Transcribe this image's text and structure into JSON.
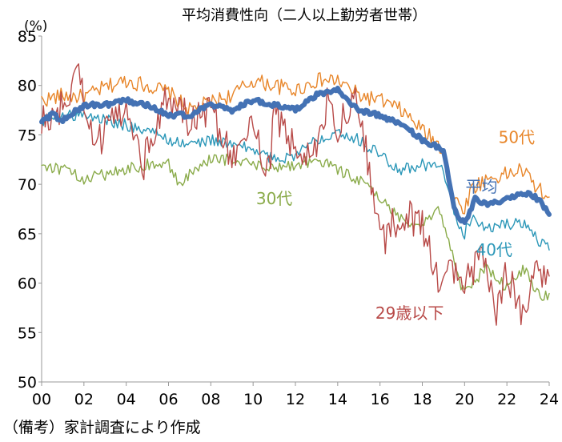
{
  "chart_data": {
    "type": "line",
    "title": "平均消費性向（二人以上勤労者世帯）",
    "ylabel": "(%)",
    "xlabel": "",
    "note": "（備考）家計調査により作成",
    "ylim": [
      50,
      85
    ],
    "xlim": [
      2000,
      2024
    ],
    "yticks": [
      "50",
      "55",
      "60",
      "65",
      "70",
      "75",
      "80",
      "85"
    ],
    "xticks": [
      "00",
      "02",
      "04",
      "06",
      "08",
      "10",
      "12",
      "14",
      "16",
      "18",
      "20",
      "22",
      "24"
    ],
    "series": [
      {
        "name": "50代",
        "color": "#e8862a",
        "x": [
          2000,
          2001,
          2002,
          2003,
          2004,
          2005,
          2006,
          2007,
          2008,
          2009,
          2010,
          2011,
          2012,
          2013,
          2014,
          2015,
          2016,
          2017,
          2018,
          2019,
          2019.5,
          2020,
          2020.3,
          2021,
          2022,
          2022.7,
          2023.5,
          2024
        ],
        "y": [
          78.5,
          79,
          78.8,
          79.8,
          80.5,
          80,
          79.3,
          77.5,
          78.3,
          79,
          80.5,
          80,
          79.5,
          80.5,
          80.5,
          79,
          78.5,
          77.5,
          75.5,
          73.5,
          68.5,
          67.5,
          69.5,
          70.5,
          71,
          71.5,
          69.5,
          68.5
        ]
      },
      {
        "name": "40代",
        "color": "#2b97b8",
        "x": [
          2000,
          2001,
          2002,
          2003,
          2004,
          2005,
          2006,
          2007,
          2008,
          2009,
          2010,
          2011,
          2012,
          2013,
          2014,
          2015,
          2016,
          2017,
          2018,
          2019,
          2019.5,
          2020,
          2020.3,
          2021,
          2022,
          2023,
          2023.6,
          2024
        ],
        "y": [
          76.5,
          77,
          77,
          76.5,
          76,
          75.5,
          74.5,
          74,
          74.5,
          74,
          73.5,
          72.5,
          73,
          74.5,
          75.5,
          74.5,
          73,
          71.5,
          72,
          71.5,
          67,
          65,
          66.5,
          65.5,
          66,
          66,
          64,
          63.5
        ]
      },
      {
        "name": "30代",
        "color": "#8aab4a",
        "x": [
          2000,
          2001,
          2002,
          2003,
          2004,
          2005,
          2006,
          2006.5,
          2007,
          2008,
          2009,
          2010,
          2011,
          2012,
          2013,
          2014,
          2015,
          2016,
          2017,
          2018,
          2018.8,
          2019.3,
          2019.8,
          2020,
          2021,
          2022,
          2022.8,
          2023.5,
          2024
        ],
        "y": [
          72,
          71.5,
          70.5,
          71,
          71.5,
          72,
          72,
          70,
          71,
          72.5,
          72.5,
          72,
          71.5,
          72,
          72.5,
          71.5,
          70.5,
          68.5,
          66.5,
          66,
          67.5,
          64,
          60,
          59,
          61.5,
          59.5,
          61.5,
          59,
          58.5
        ]
      },
      {
        "name": "29歳以下",
        "color": "#b84a48",
        "x": [
          2000,
          2001,
          2001.8,
          2002.5,
          2003,
          2004,
          2004.8,
          2005.5,
          2006,
          2007,
          2008,
          2009,
          2010,
          2010.7,
          2011,
          2012,
          2013,
          2013.6,
          2014,
          2015,
          2015.5,
          2016,
          2017,
          2018,
          2018.8,
          2019.3,
          2020,
          2020.8,
          2021.5,
          2022,
          2022.8,
          2023.3,
          2024
        ],
        "y": [
          76,
          78,
          81,
          74,
          75,
          78.5,
          72,
          77,
          79,
          76.5,
          77.5,
          73,
          77,
          70.5,
          77,
          73.5,
          73,
          79,
          76,
          78.5,
          71,
          64,
          67,
          66,
          59.5,
          62,
          59.5,
          63.5,
          57.5,
          61,
          56.5,
          62.5,
          59.5
        ]
      },
      {
        "name": "平均",
        "color": "#4472b4",
        "x": [
          2000,
          2000.5,
          2001,
          2002,
          2003,
          2004,
          2005,
          2006,
          2007,
          2008,
          2009,
          2010,
          2011,
          2012,
          2013,
          2014,
          2015,
          2016,
          2017,
          2018,
          2019,
          2019.5,
          2020,
          2020.5,
          2021,
          2022,
          2022.5,
          2023,
          2023.5,
          2024
        ],
        "y": [
          76.5,
          77,
          76.5,
          78,
          78,
          78.5,
          78,
          77,
          77,
          78,
          77.5,
          78.5,
          78,
          77.5,
          79,
          79.5,
          77.5,
          77,
          76,
          74.5,
          73.5,
          67.5,
          66,
          68.5,
          68,
          68.5,
          69,
          69,
          68.5,
          67
        ]
      }
    ]
  }
}
